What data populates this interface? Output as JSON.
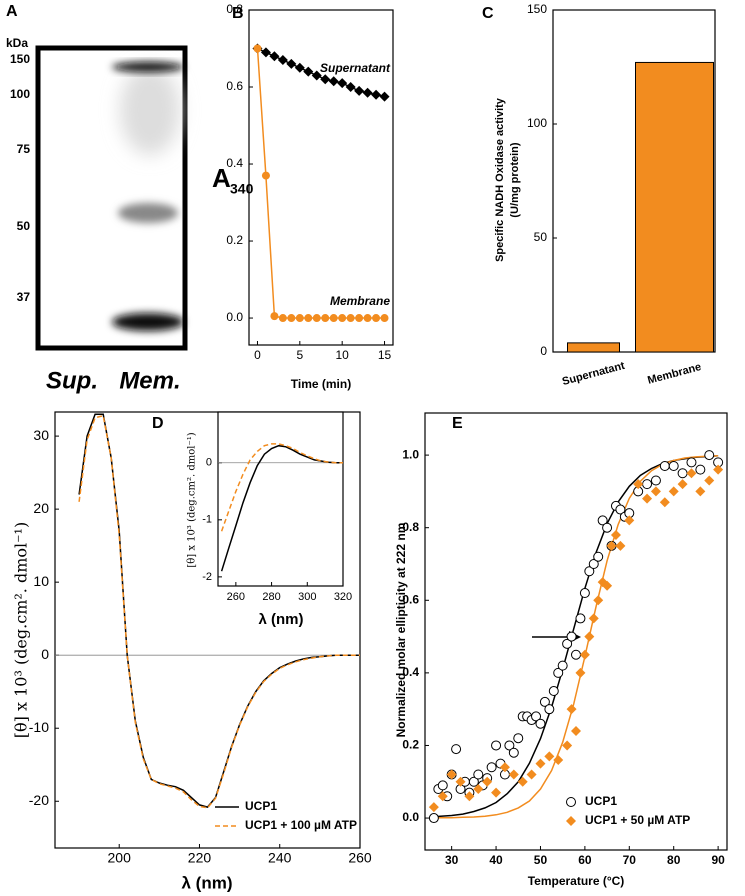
{
  "chart_data": [
    {
      "type": "gel",
      "panel": "A",
      "ylabel": "kDa",
      "markers": [
        150,
        100,
        75,
        50,
        37
      ],
      "lanes": [
        "Sup.",
        "Mem."
      ]
    },
    {
      "type": "line",
      "panel": "B",
      "ylabel": "A",
      "ylabel_sub": "340",
      "xlabel": "Time (min)",
      "xlim": [
        -1,
        16
      ],
      "ylim": [
        -0.07,
        0.8
      ],
      "xticks": [
        0,
        5,
        10,
        15
      ],
      "yticks": [
        {
          "value": 0,
          "label": "0.0"
        },
        0.2,
        0.4,
        0.6,
        0.8
      ],
      "legend": "inline",
      "series": [
        {
          "name": "Supernatant",
          "color": "#000000",
          "marker": "diamond",
          "line": true,
          "x": [
            0,
            1,
            2,
            3,
            4,
            5,
            6,
            7,
            8,
            9,
            10,
            11,
            12,
            13,
            14,
            15
          ],
          "values": [
            0.7,
            0.69,
            0.68,
            0.67,
            0.66,
            0.65,
            0.64,
            0.63,
            0.62,
            0.615,
            0.61,
            0.6,
            0.59,
            0.585,
            0.58,
            0.575
          ]
        },
        {
          "name": "Membrane",
          "color": "#f28c1f",
          "marker": "circle",
          "line": true,
          "x": [
            0,
            1,
            2,
            3,
            4,
            5,
            6,
            7,
            8,
            9,
            10,
            11,
            12,
            13,
            14,
            15
          ],
          "values": [
            0.7,
            0.37,
            0.005,
            0,
            0,
            0,
            0,
            0,
            0,
            0,
            0,
            0,
            0,
            0,
            0,
            0
          ]
        }
      ]
    },
    {
      "type": "bar",
      "panel": "C",
      "ylabel": [
        "Specific NADH Oxidase activity",
        "(U/mg protein)"
      ],
      "categories": [
        "Supernatant",
        "Membrane"
      ],
      "values": [
        4,
        127
      ],
      "color": "#f28c1f",
      "ylim": [
        0,
        150
      ],
      "yticks": [
        0,
        50,
        100,
        150
      ]
    },
    {
      "type": "line",
      "panel": "D",
      "ylabel": "[θ] x 10³ (deg.cm². dmol⁻¹)",
      "xlabel": "λ (nm)",
      "xlim": [
        184,
        260
      ],
      "ylim": [
        -26.4,
        33.3
      ],
      "xticks": [
        200,
        220,
        240,
        260
      ],
      "yticks": [
        -20,
        -10,
        0,
        10,
        20,
        30
      ],
      "legend": "lower right",
      "series": [
        {
          "name": "UCP1",
          "color": "#000000",
          "line": true,
          "x": [
            190,
            192,
            194,
            196,
            198,
            200,
            202,
            204,
            206,
            208,
            210,
            212,
            214,
            216,
            218,
            220,
            222,
            224,
            226,
            228,
            230,
            232,
            234,
            236,
            238,
            240,
            242,
            244,
            246,
            248,
            250,
            252,
            254,
            256,
            258,
            260
          ],
          "values": [
            22,
            30,
            33,
            33,
            27,
            17,
            0,
            -9,
            -14,
            -17,
            -17.5,
            -17.8,
            -18,
            -18.5,
            -19.5,
            -20.5,
            -20.8,
            -19.5,
            -16,
            -12.5,
            -9.5,
            -7,
            -5,
            -3.5,
            -2.5,
            -1.7,
            -1.2,
            -0.8,
            -0.5,
            -0.3,
            -0.2,
            -0.1,
            0,
            0,
            0,
            0
          ]
        },
        {
          "name": "UCP1 + 100 µM ATP",
          "color": "#f28c1f",
          "line": true,
          "dash": true,
          "x": [
            190,
            192,
            194,
            196,
            198,
            200,
            202,
            204,
            206,
            208,
            210,
            212,
            214,
            216,
            218,
            220,
            222,
            224,
            226,
            228,
            230,
            232,
            234,
            236,
            238,
            240,
            242,
            244,
            246,
            248,
            250,
            252,
            254,
            256,
            258,
            260
          ],
          "values": [
            21,
            29.5,
            32.5,
            32.8,
            27,
            16.5,
            0,
            -9.2,
            -14.2,
            -17,
            -17.6,
            -17.9,
            -18.2,
            -18.7,
            -19.8,
            -20.7,
            -20.9,
            -19.6,
            -16.2,
            -12.6,
            -9.6,
            -7.1,
            -5.1,
            -3.6,
            -2.6,
            -1.8,
            -1.3,
            -0.9,
            -0.6,
            -0.4,
            -0.2,
            -0.1,
            0,
            0,
            0,
            0
          ]
        }
      ]
    },
    {
      "type": "line",
      "ylabel": "[θ] x 10³ (deg.cm². dmol⁻¹)",
      "xlabel": "λ (nm)",
      "xlim": [
        250,
        320
      ],
      "ylim": [
        -2.16,
        0.89
      ],
      "xticks": [
        260,
        280,
        300,
        320
      ],
      "yticks": [
        -2,
        -1,
        0
      ],
      "series": [
        {
          "color": "#000000",
          "line": true,
          "x": [
            252,
            256,
            260,
            264,
            268,
            272,
            276,
            280,
            284,
            288,
            292,
            296,
            300,
            304,
            308,
            312,
            316,
            320
          ],
          "values": [
            -1.9,
            -1.5,
            -1.1,
            -0.7,
            -0.35,
            -0.05,
            0.15,
            0.25,
            0.3,
            0.28,
            0.22,
            0.15,
            0.1,
            0.05,
            0.03,
            0.01,
            0,
            0
          ]
        },
        {
          "color": "#f28c1f",
          "line": true,
          "dash": true,
          "x": [
            252,
            256,
            260,
            264,
            268,
            272,
            276,
            280,
            284,
            288,
            292,
            296,
            300,
            304,
            308,
            312,
            316,
            320
          ],
          "values": [
            -1.2,
            -0.85,
            -0.5,
            -0.2,
            0.05,
            0.2,
            0.3,
            0.33,
            0.33,
            0.3,
            0.25,
            0.18,
            0.12,
            0.07,
            0.03,
            0.01,
            0,
            0
          ]
        }
      ]
    },
    {
      "type": "scatter",
      "panel": "E",
      "ylabel": "Normalized molar ellipticity at 222 nm",
      "xlabel": "Temperature (°C)",
      "xlim": [
        24,
        92
      ],
      "ylim": [
        -0.088,
        1.116
      ],
      "xticks": [
        30,
        40,
        50,
        60,
        70,
        80,
        90
      ],
      "yticks": [
        {
          "value": 0,
          "label": "0.0"
        },
        0.2,
        0.4,
        0.6,
        0.8,
        {
          "value": 1,
          "label": "1.0"
        }
      ],
      "legend": "lower right",
      "series": [
        {
          "color": "#000000",
          "line": true,
          "x": [
            25,
            27.5,
            30,
            32.5,
            35,
            37.5,
            40,
            42.5,
            45,
            47.5,
            50,
            52.5,
            55,
            57.5,
            60,
            62.5,
            65,
            67.5,
            70,
            72.5,
            75,
            77.5,
            80,
            82.5,
            85,
            87.5,
            90
          ],
          "values": [
            0.003,
            0.005,
            0.007,
            0.011,
            0.018,
            0.028,
            0.043,
            0.067,
            0.1,
            0.151,
            0.219,
            0.306,
            0.41,
            0.522,
            0.633,
            0.731,
            0.811,
            0.871,
            0.914,
            0.944,
            0.963,
            0.977,
            0.985,
            0.99,
            0.994,
            0.996,
            0.998
          ]
        },
        {
          "color": "#f28c1f",
          "line": true,
          "x": [
            25,
            27.5,
            30,
            32.5,
            35,
            37.5,
            40,
            42.5,
            45,
            47.5,
            50,
            52.5,
            55,
            57.5,
            60,
            62.5,
            65,
            67.5,
            70,
            72.5,
            75,
            77.5,
            80,
            82.5,
            85,
            87.5,
            90
          ],
          "values": [
            0.0003,
            0.0006,
            0.001,
            0.002,
            0.003,
            0.005,
            0.009,
            0.016,
            0.028,
            0.047,
            0.08,
            0.131,
            0.209,
            0.315,
            0.445,
            0.582,
            0.709,
            0.809,
            0.881,
            0.928,
            0.957,
            0.975,
            0.985,
            0.992,
            0.995,
            0.997,
            0.998
          ]
        },
        {
          "name": "UCP1",
          "color": "#000000",
          "marker": "open-circle",
          "x": [
            26,
            27,
            28,
            29,
            30,
            31,
            32,
            33,
            34,
            35,
            36,
            37,
            38,
            39,
            40,
            41,
            42,
            43,
            44,
            45,
            46,
            47,
            48,
            49,
            50,
            51,
            52,
            53,
            54,
            55,
            56,
            57,
            58,
            59,
            60,
            61,
            62,
            63,
            64,
            65,
            66,
            67,
            68,
            69,
            70,
            72,
            74,
            76,
            78,
            80,
            82,
            84,
            86,
            88,
            90
          ],
          "values": [
            0,
            0.08,
            0.09,
            0.06,
            0.12,
            0.19,
            0.08,
            0.1,
            0.07,
            0.1,
            0.12,
            0.09,
            0.11,
            0.14,
            0.2,
            0.15,
            0.12,
            0.2,
            0.18,
            0.22,
            0.28,
            0.28,
            0.27,
            0.28,
            0.26,
            0.32,
            0.3,
            0.35,
            0.4,
            0.42,
            0.48,
            0.5,
            0.45,
            0.55,
            0.62,
            0.68,
            0.7,
            0.72,
            0.82,
            0.8,
            0.75,
            0.86,
            0.85,
            0.83,
            0.84,
            0.9,
            0.92,
            0.93,
            0.97,
            0.97,
            0.95,
            0.98,
            0.96,
            1,
            0.98
          ]
        },
        {
          "name": "UCP1 + 50 µM ATP",
          "color": "#f28c1f",
          "marker": "diamond",
          "x": [
            26,
            28,
            30,
            32,
            34,
            36,
            38,
            40,
            42,
            44,
            46,
            48,
            50,
            52,
            54,
            56,
            57,
            58,
            59,
            60,
            61,
            62,
            63,
            64,
            65,
            66,
            67,
            68,
            70,
            72,
            74,
            76,
            78,
            80,
            82,
            84,
            86,
            88,
            90
          ],
          "values": [
            0.03,
            0.06,
            0.12,
            0.1,
            0.06,
            0.08,
            0.1,
            0.07,
            0.14,
            0.12,
            0.1,
            0.12,
            0.15,
            0.17,
            0.16,
            0.2,
            0.3,
            0.24,
            0.4,
            0.45,
            0.5,
            0.55,
            0.6,
            0.65,
            0.64,
            0.75,
            0.78,
            0.75,
            0.82,
            0.92,
            0.88,
            0.9,
            0.87,
            0.9,
            0.92,
            0.95,
            0.9,
            0.93,
            0.96
          ]
        }
      ]
    }
  ]
}
